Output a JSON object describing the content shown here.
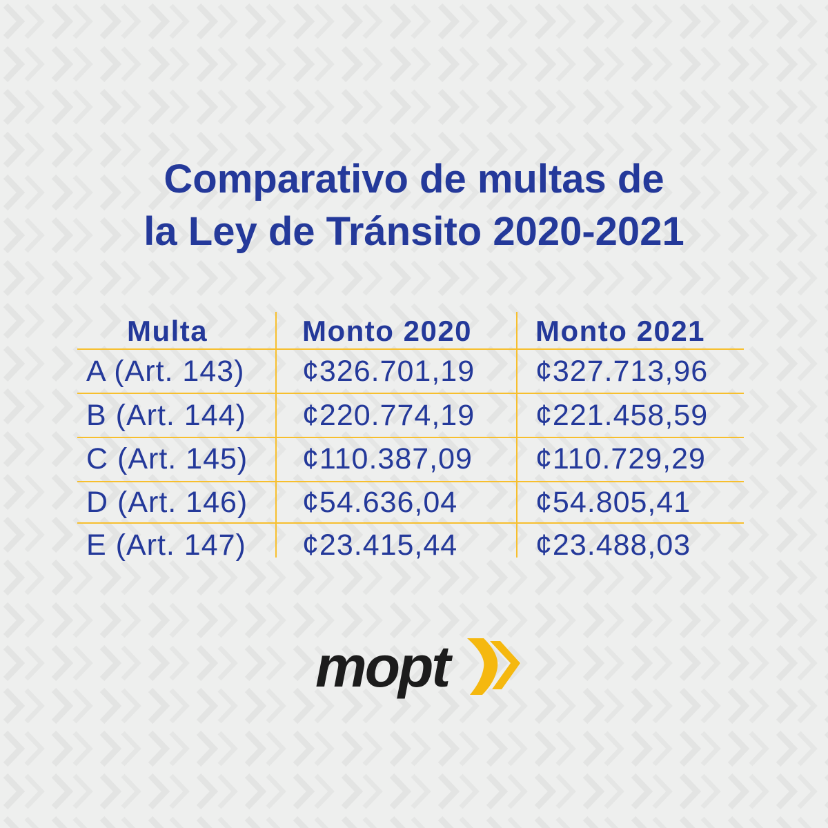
{
  "title": {
    "line1": "Comparativo de multas de",
    "line2": "la Ley de Tránsito 2020-2021"
  },
  "table": {
    "headers": [
      "Multa",
      "Monto 2020",
      "Monto 2021"
    ],
    "rows": [
      [
        "A (Art. 143)",
        "¢326.701,19",
        "¢327.713,96"
      ],
      [
        "B (Art. 144)",
        "¢220.774,19",
        "¢221.458,59"
      ],
      [
        "C (Art. 145)",
        "¢110.387,09",
        "¢110.729,29"
      ],
      [
        "D (Art. 146)",
        "¢54.636,04",
        "¢54.805,41"
      ],
      [
        "E (Art. 147)",
        "¢23.415,44",
        "¢23.488,03"
      ]
    ]
  },
  "logo": {
    "text": "mopt"
  },
  "colors": {
    "title": "#24399a",
    "rule": "#f7bf2e",
    "logo_text": "#1c1c1c",
    "logo_accent": "#f5b80f",
    "background": "#eeefee"
  }
}
